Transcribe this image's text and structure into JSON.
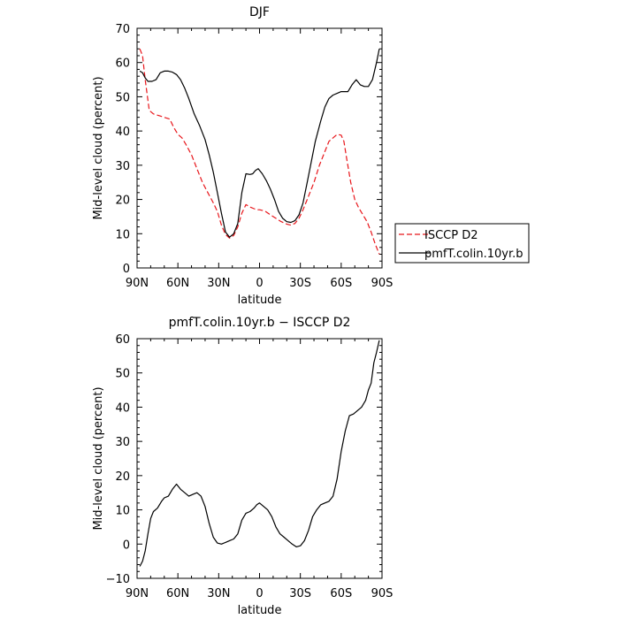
{
  "chart_data": [
    {
      "type": "line",
      "title": "DJF",
      "xlabel": "latitude",
      "ylabel": "Mid-level cloud (percent)",
      "xlim": [
        90,
        -90
      ],
      "ylim": [
        0,
        70
      ],
      "x_ticks": [
        90,
        60,
        30,
        0,
        -30,
        -60,
        -90
      ],
      "x_tick_labels": [
        "90N",
        "60N",
        "30N",
        "0",
        "30S",
        "60S",
        "90S"
      ],
      "y_ticks": [
        0,
        10,
        20,
        30,
        40,
        50,
        60,
        70
      ],
      "y_tick_labels": [
        "0",
        "10",
        "20",
        "30",
        "40",
        "50",
        "60",
        "70"
      ],
      "legend": {
        "placement": "right-outside"
      },
      "series": [
        {
          "name": "ISCCP D2",
          "color": "#e8161b",
          "dash": "dashed",
          "x": [
            88,
            86,
            84,
            81,
            78,
            74,
            70,
            66,
            63,
            60,
            57,
            54,
            50,
            46,
            42,
            38,
            34,
            31,
            28,
            25,
            22,
            19,
            16,
            13,
            10,
            7,
            4,
            2,
            0,
            -4,
            -8,
            -12,
            -16,
            -20,
            -23,
            -26,
            -29,
            -32,
            -35,
            -40,
            -44,
            -48,
            -51,
            -54,
            -57,
            -60,
            -62,
            -64,
            -67,
            -70,
            -73,
            -76,
            -79,
            -82,
            -85,
            -88
          ],
          "values": [
            64,
            62,
            55,
            46,
            45,
            44.5,
            44,
            43.5,
            41,
            39,
            38,
            36,
            33,
            29,
            25,
            22,
            19,
            16.5,
            12.5,
            9.8,
            8.7,
            9.5,
            12,
            16,
            18.5,
            17.8,
            17.3,
            17,
            17,
            16.6,
            15.5,
            14.5,
            13.5,
            12.8,
            12.5,
            13,
            14.5,
            17,
            20,
            25,
            30,
            34,
            37,
            38,
            39,
            38.8,
            37,
            32,
            25,
            20,
            17.5,
            15.5,
            13.5,
            10.5,
            7,
            4
          ]
        },
        {
          "name": "pmfT.colin.10yr.b",
          "color": "#000000",
          "dash": "solid",
          "x": [
            88,
            86,
            84,
            82,
            79,
            76,
            73,
            70,
            67,
            64,
            61,
            58,
            55,
            52,
            48,
            44,
            40,
            37,
            34,
            31,
            28,
            25,
            22,
            19,
            16,
            13,
            10,
            7,
            5,
            3,
            1,
            -2,
            -5,
            -8,
            -11,
            -14,
            -17,
            -20,
            -23,
            -26,
            -29,
            -32,
            -35,
            -38,
            -41,
            -45,
            -48,
            -51,
            -54,
            -57,
            -60,
            -62,
            -65,
            -68,
            -71,
            -74,
            -77,
            -80,
            -83,
            -86,
            -88
          ],
          "values": [
            57.5,
            57,
            55.5,
            54.5,
            54.5,
            55,
            57,
            57.5,
            57.5,
            57.2,
            56.5,
            55,
            52.5,
            49.5,
            45,
            41.5,
            37.5,
            33,
            28,
            22,
            16,
            10.5,
            9,
            10,
            13,
            22,
            27.5,
            27.3,
            27.5,
            28.5,
            29,
            27.5,
            25.5,
            23,
            20,
            16.5,
            14.5,
            13.5,
            13.3,
            13.8,
            15.5,
            19,
            25,
            31,
            37,
            43,
            47,
            49.5,
            50.5,
            51,
            51.5,
            51.5,
            51.5,
            53.5,
            55,
            53.5,
            53,
            53,
            55,
            60,
            64
          ]
        }
      ]
    },
    {
      "type": "line",
      "title": "pmfT.colin.10yr.b − ISCCP D2",
      "xlabel": "latitude",
      "ylabel": "Mid-level cloud (percent)",
      "xlim": [
        90,
        -90
      ],
      "ylim": [
        -10,
        60
      ],
      "x_ticks": [
        90,
        60,
        30,
        0,
        -30,
        -60,
        -90
      ],
      "x_tick_labels": [
        "90N",
        "60N",
        "30N",
        "0",
        "30S",
        "60S",
        "90S"
      ],
      "y_ticks": [
        -10,
        0,
        10,
        20,
        30,
        40,
        50,
        60
      ],
      "y_tick_labels": [
        "−10",
        "0",
        "10",
        "20",
        "30",
        "40",
        "50",
        "60"
      ],
      "series": [
        {
          "color": "#000000",
          "dash": "solid",
          "x": [
            88,
            86,
            84,
            82,
            80,
            78,
            75,
            72,
            70,
            67,
            64,
            61,
            58,
            55,
            52,
            49,
            46,
            43,
            40,
            37,
            34,
            31,
            28,
            25,
            22,
            19,
            16,
            13,
            10,
            7,
            4,
            2,
            0,
            -3,
            -6,
            -9,
            -12,
            -15,
            -18,
            -21,
            -24,
            -27,
            -30,
            -33,
            -36,
            -39,
            -42,
            -45,
            -48,
            -51,
            -54,
            -57,
            -60,
            -63,
            -66,
            -69,
            -72,
            -75,
            -78,
            -80,
            -82,
            -84,
            -86,
            -88
          ],
          "values": [
            -6.5,
            -5,
            -2,
            3,
            7.5,
            9.5,
            10.5,
            12.5,
            13.5,
            14,
            16,
            17.5,
            16,
            15,
            14,
            14.5,
            15,
            14,
            11,
            6,
            2,
            0.3,
            0,
            0.5,
            1,
            1.5,
            3,
            7,
            9,
            9.5,
            10.5,
            11.5,
            12,
            11,
            10,
            8,
            5,
            3,
            2,
            1,
            0,
            -0.8,
            -0.5,
            1,
            4,
            8,
            10,
            11.5,
            12,
            12.5,
            14,
            19,
            27,
            33,
            37.5,
            38,
            39,
            40,
            42,
            45,
            47,
            53,
            56,
            59.5
          ]
        }
      ]
    }
  ]
}
